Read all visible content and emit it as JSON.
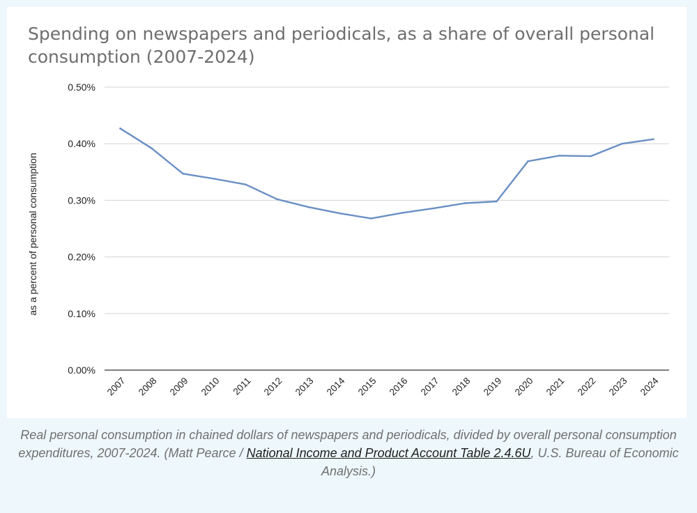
{
  "chart_data": {
    "type": "line",
    "title": "Spending on newspapers and periodicals, as a share of overall personal consumption (2007-2024)",
    "xlabel": "",
    "ylabel": "as a percent of personal consumption",
    "x": [
      "2007",
      "2008",
      "2009",
      "2010",
      "2011",
      "2012",
      "2013",
      "2014",
      "2015",
      "2016",
      "2017",
      "2018",
      "2019",
      "2020",
      "2021",
      "2022",
      "2023",
      "2024"
    ],
    "series": [
      {
        "values": [
          0.427,
          0.392,
          0.347,
          0.338,
          0.328,
          0.302,
          0.288,
          0.277,
          0.268,
          0.278,
          0.286,
          0.295,
          0.298,
          0.369,
          0.379,
          0.378,
          0.4,
          0.408
        ]
      }
    ],
    "ylim": [
      0,
      0.5
    ],
    "yticks": [
      "0.00%",
      "0.10%",
      "0.20%",
      "0.30%",
      "0.40%",
      "0.50%"
    ],
    "grid": true,
    "line_color": "#6a8fc4"
  },
  "caption": {
    "before_link": "Real personal consumption in chained dollars of newspapers and periodicals, divided by overall personal consumption expenditures, 2007-2024. (Matt Pearce / ",
    "link_text": "National Income and Product Account Table 2.4.6U",
    "after_link": ", U.S. Bureau of Economic Analysis.)"
  }
}
